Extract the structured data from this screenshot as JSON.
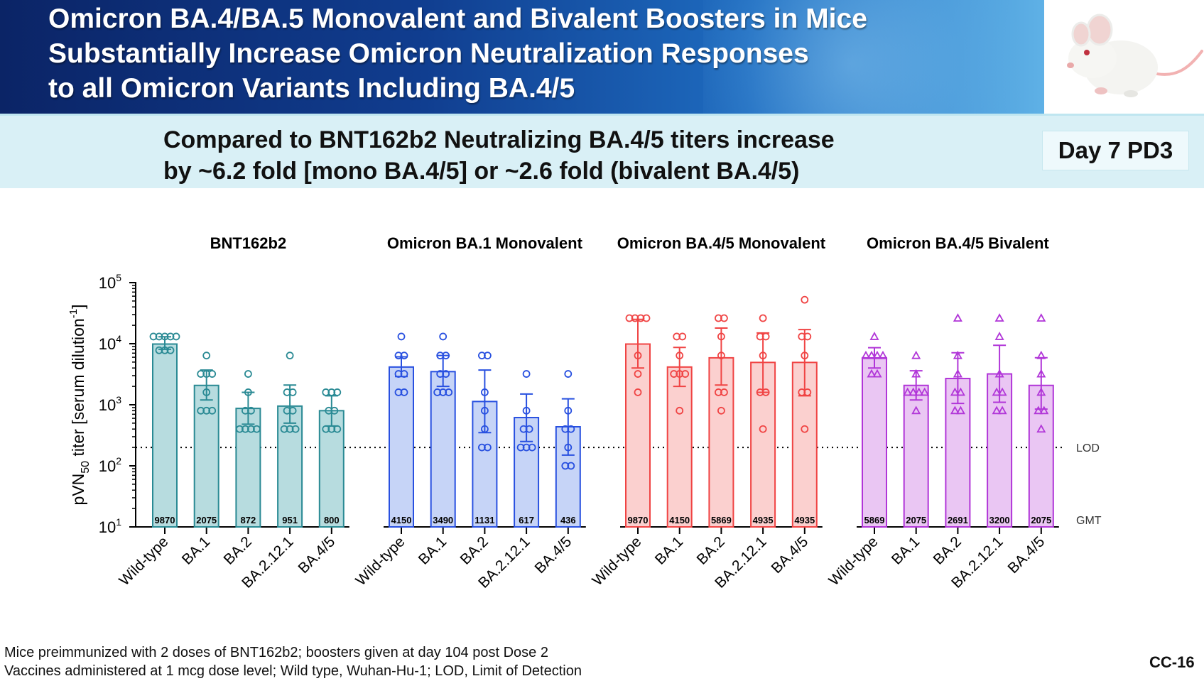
{
  "slide": {
    "title_lines": [
      "Omicron BA.4/BA.5 Monovalent and Bivalent Boosters in Mice",
      "Substantially Increase Omicron Neutralization Responses",
      "to all Omicron Variants Including BA.4/5"
    ],
    "subtitle_lines": [
      "Compared to BNT162b2 Neutralizing BA.4/5 titers increase",
      "by ~6.2 fold [mono BA.4/5] or ~2.6 fold (bivalent BA.4/5)"
    ],
    "badge": "Day 7 PD3",
    "footnote_lines": [
      "Mice preimmunized with 2 doses of BNT162b2; boosters given at day 104 post Dose 2",
      "Vaccines administered at 1 mcg dose level; Wild type, Wuhan-Hu-1; LOD, Limit of Detection"
    ],
    "slide_number": "CC-16",
    "image_alt": "white-mouse"
  },
  "chart_data": {
    "type": "bar",
    "scale": "log10",
    "ylim": [
      10,
      100000
    ],
    "y_ticks": [
      {
        "base": "10",
        "exp": "1"
      },
      {
        "base": "10",
        "exp": "2"
      },
      {
        "base": "10",
        "exp": "3"
      },
      {
        "base": "10",
        "exp": "4"
      },
      {
        "base": "10",
        "exp": "5"
      }
    ],
    "ylabel": {
      "pre": "pVN",
      "sub": "50",
      "mid": " titer [serum dilution",
      "sup": "-1",
      "post": "]"
    },
    "categories": [
      "Wild-type",
      "BA.1",
      "BA.2",
      "BA.2.12.1",
      "BA.4/5"
    ],
    "lod": {
      "value": 200,
      "label": "LOD"
    },
    "gmt_label": "GMT",
    "groups": [
      {
        "name": "BNT162b2",
        "color": "#2a8a94",
        "fill": "#b7dcdf",
        "marker": "circle",
        "gmt": [
          9870,
          2075,
          872,
          951,
          800
        ],
        "ci": [
          [
            8100,
            13000
          ],
          [
            1200,
            3700
          ],
          [
            480,
            1600
          ],
          [
            500,
            2100
          ],
          [
            450,
            1400
          ]
        ],
        "points": [
          [
            13100,
            13100,
            13100,
            13100,
            13100,
            7800,
            7800,
            7800
          ],
          [
            6400,
            3200,
            3200,
            3200,
            1600,
            800,
            800,
            800
          ],
          [
            3200,
            1600,
            800,
            800,
            400,
            400,
            400,
            400
          ],
          [
            6400,
            1600,
            1600,
            800,
            800,
            400,
            400,
            400
          ],
          [
            1600,
            1600,
            1600,
            800,
            800,
            400,
            400,
            400
          ]
        ]
      },
      {
        "name": "Omicron BA.1 Monovalent",
        "color": "#2850e0",
        "fill": "#c6d4f7",
        "marker": "circle",
        "gmt": [
          4150,
          3490,
          1131,
          617,
          436
        ],
        "ci": [
          [
            2900,
            6100
          ],
          [
            2000,
            6400
          ],
          [
            350,
            3700
          ],
          [
            250,
            1500
          ],
          [
            150,
            1250
          ]
        ],
        "points": [
          [
            13100,
            6400,
            6400,
            3200,
            3200,
            1600,
            1600
          ],
          [
            13100,
            6400,
            6400,
            3200,
            3200,
            1600,
            1600,
            1600
          ],
          [
            6400,
            6400,
            1600,
            800,
            400,
            200,
            200
          ],
          [
            3200,
            800,
            400,
            400,
            200,
            200,
            200
          ],
          [
            3200,
            800,
            400,
            400,
            200,
            100,
            100
          ]
        ]
      },
      {
        "name": "Omicron BA.4/5 Monovalent",
        "color": "#f04444",
        "fill": "#fbd0cf",
        "marker": "circle",
        "gmt": [
          9870,
          4150,
          5869,
          4935,
          4935
        ],
        "ci": [
          [
            4000,
            25000
          ],
          [
            2000,
            8700
          ],
          [
            2100,
            18000
          ],
          [
            1600,
            15000
          ],
          [
            1400,
            17000
          ]
        ],
        "points": [
          [
            26200,
            26200,
            26200,
            26200,
            6400,
            3200,
            1600
          ],
          [
            13100,
            13100,
            6400,
            3200,
            3200,
            3200,
            800
          ],
          [
            26200,
            26200,
            13100,
            6400,
            1600,
            1600,
            800
          ],
          [
            26200,
            13100,
            13100,
            6400,
            1600,
            1600,
            400
          ],
          [
            52400,
            13100,
            13100,
            6400,
            1600,
            1600,
            400
          ]
        ]
      },
      {
        "name": "Omicron BA.4/5 Bivalent",
        "color": "#b136d8",
        "fill": "#eac6f3",
        "marker": "triangle",
        "gmt": [
          5869,
          2075,
          2691,
          3200,
          2075
        ],
        "ci": [
          [
            4000,
            8600
          ],
          [
            1200,
            3600
          ],
          [
            1050,
            7100
          ],
          [
            1100,
            9400
          ],
          [
            850,
            5900
          ]
        ],
        "points": [
          [
            13100,
            6400,
            6400,
            6400,
            6400,
            3200,
            3200
          ],
          [
            6400,
            3200,
            1600,
            1600,
            1600,
            1600,
            800
          ],
          [
            26200,
            6400,
            3200,
            1600,
            1600,
            800,
            800
          ],
          [
            26200,
            13100,
            3200,
            1600,
            1600,
            800,
            800
          ],
          [
            26200,
            6400,
            3200,
            1600,
            800,
            800,
            400
          ]
        ]
      }
    ]
  }
}
